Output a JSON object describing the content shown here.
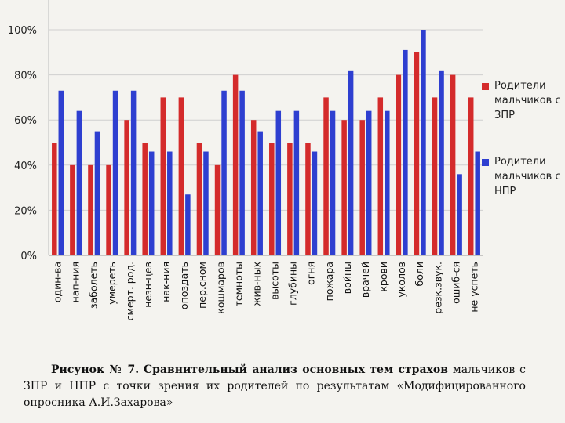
{
  "chart_data": {
    "type": "bar",
    "title": "",
    "xlabel": "",
    "ylabel": "",
    "ylim": [
      0,
      100
    ],
    "yticks": [
      "0%",
      "20%",
      "40%",
      "60%",
      "80%",
      "100%"
    ],
    "grid": true,
    "legend_position": "right",
    "categories": [
      "один-ва",
      "нап-ния",
      "заболеть",
      "умереть",
      "смерт. род.",
      "незн-цев",
      "нак-ния",
      "опоздать",
      "пер.сном",
      "кошмаров",
      "темноты",
      "жив-ных",
      "высоты",
      "глубины",
      "огня",
      "пожара",
      "войны",
      "врачей",
      "крови",
      "уколов",
      "боли",
      "резк.звук.",
      "ошиб-ся",
      "не успеть"
    ],
    "series": [
      {
        "name": "Родители мальчиков с ЗПР",
        "color": "#d42b2b",
        "values": [
          50,
          40,
          40,
          40,
          60,
          50,
          70,
          70,
          50,
          40,
          80,
          60,
          50,
          50,
          50,
          70,
          60,
          60,
          70,
          80,
          90,
          70,
          80,
          70
        ]
      },
      {
        "name": "Родители мальчиков с НПР",
        "color": "#2e3fd0",
        "values": [
          73,
          64,
          55,
          73,
          73,
          46,
          46,
          27,
          46,
          73,
          73,
          55,
          64,
          64,
          46,
          64,
          82,
          64,
          64,
          91,
          100,
          82,
          36,
          46
        ]
      }
    ]
  },
  "caption": {
    "label": "Рисунок № 7.",
    "bold_text": "Сравнительный анализ основных тем страхов",
    "rest_text": " мальчиков с ЗПР и НПР с точки зрения их родителей по результатам «Модифицированного опросника А.И.Захарова»"
  }
}
